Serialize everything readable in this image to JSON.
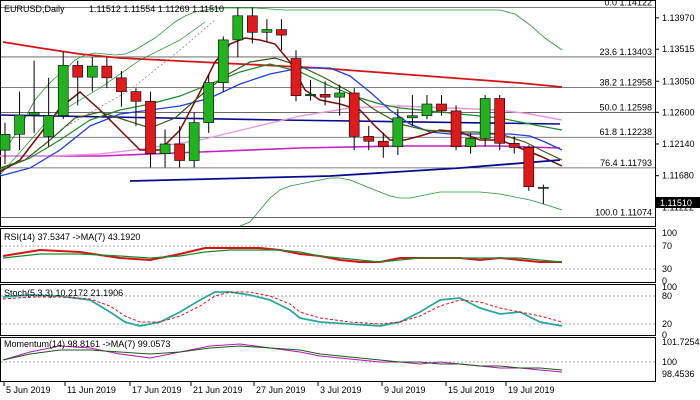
{
  "header": {
    "symbol": "EURUSD,Daily",
    "ohlc": "1.11512 1.11554 1.11269 1.11510"
  },
  "price_axis": [
    "1.13970",
    "1.13515",
    "1.13050",
    "1.12600",
    "1.12140",
    "1.11680",
    "1.11222"
  ],
  "price_badge": "1.11510",
  "fib_levels": [
    {
      "label": "0.0 1.14122",
      "price": 1.14122
    },
    {
      "label": "23.6 1.13403",
      "price": 1.13403
    },
    {
      "label": "38.2 1.12958",
      "price": 1.12958
    },
    {
      "label": "50.0 1.12598",
      "price": 1.12598
    },
    {
      "label": "61.8 1.12238",
      "price": 1.12238
    },
    {
      "label": "76.4 1.11793",
      "price": 1.11793
    },
    {
      "label": "100.0 1.11074",
      "price": 1.11074
    }
  ],
  "x_labels": [
    "5 Jun 2019",
    "11 Jun 2019",
    "17 Jun 2019",
    "21 Jun 2019",
    "27 Jun 2019",
    "3 Jul 2019",
    "9 Jul 2019",
    "15 Jul 2019",
    "19 Jul 2019"
  ],
  "rsi": {
    "header": "RSI(14) 37.5347  ->MA(7) 43.1920",
    "axis": [
      "100",
      "70",
      "30",
      "0"
    ]
  },
  "stoch": {
    "header": "Stoch(5,3,3) 10.2172 21.1906",
    "axis": [
      "100",
      "80",
      "20",
      "0"
    ]
  },
  "momentum": {
    "header": "Momentum(14) 98.8161  ->MA(7) 99.0573",
    "axis": [
      "101.7254",
      "100",
      "98.4536"
    ]
  },
  "colors": {
    "bull": "#22b21f",
    "bear": "#e01a1a",
    "candle_border": "#000000",
    "fib": "#555555",
    "trend": "#0a0a8f"
  },
  "chart_data": {
    "type": "candlestick",
    "title": "EURUSD,Daily",
    "ylim": [
      1.1095,
      1.142
    ],
    "candles": [
      {
        "date": "3 Jun 2019",
        "o": 1.1205,
        "h": 1.1245,
        "l": 1.1185,
        "c": 1.1228
      },
      {
        "date": "4 Jun 2019",
        "o": 1.1228,
        "h": 1.129,
        "l": 1.1205,
        "c": 1.1256
      },
      {
        "date": "5 Jun 2019",
        "o": 1.1256,
        "h": 1.1335,
        "l": 1.123,
        "c": 1.126
      },
      {
        "date": "6 Jun 2019",
        "o": 1.1225,
        "h": 1.131,
        "l": 1.121,
        "c": 1.1255
      },
      {
        "date": "7 Jun 2019",
        "o": 1.1255,
        "h": 1.1348,
        "l": 1.125,
        "c": 1.1328
      },
      {
        "date": "10 Jun 2019",
        "o": 1.1328,
        "h": 1.1335,
        "l": 1.127,
        "c": 1.1311
      },
      {
        "date": "11 Jun 2019",
        "o": 1.1311,
        "h": 1.134,
        "l": 1.129,
        "c": 1.1327
      },
      {
        "date": "12 Jun 2019",
        "o": 1.1327,
        "h": 1.134,
        "l": 1.1295,
        "c": 1.131
      },
      {
        "date": "13 Jun 2019",
        "o": 1.131,
        "h": 1.132,
        "l": 1.1268,
        "c": 1.129
      },
      {
        "date": "14 Jun 2019",
        "o": 1.129,
        "h": 1.1295,
        "l": 1.124,
        "c": 1.1276
      },
      {
        "date": "17 Jun 2019",
        "o": 1.1276,
        "h": 1.129,
        "l": 1.118,
        "c": 1.12
      },
      {
        "date": "18 Jun 2019",
        "o": 1.12,
        "h": 1.1235,
        "l": 1.118,
        "c": 1.1214
      },
      {
        "date": "19 Jun 2019",
        "o": 1.1214,
        "h": 1.124,
        "l": 1.118,
        "c": 1.119
      },
      {
        "date": "20 Jun 2019",
        "o": 1.119,
        "h": 1.126,
        "l": 1.118,
        "c": 1.1245
      },
      {
        "date": "21 Jun 2019",
        "o": 1.1245,
        "h": 1.1315,
        "l": 1.123,
        "c": 1.1303
      },
      {
        "date": "24 Jun 2019",
        "o": 1.1303,
        "h": 1.137,
        "l": 1.129,
        "c": 1.1365
      },
      {
        "date": "25 Jun 2019",
        "o": 1.1365,
        "h": 1.1412,
        "l": 1.134,
        "c": 1.14
      },
      {
        "date": "26 Jun 2019",
        "o": 1.14,
        "h": 1.1412,
        "l": 1.136,
        "c": 1.1376
      },
      {
        "date": "27 Jun 2019",
        "o": 1.1376,
        "h": 1.1395,
        "l": 1.1363,
        "c": 1.138
      },
      {
        "date": "28 Jun 2019",
        "o": 1.138,
        "h": 1.1395,
        "l": 1.135,
        "c": 1.1372
      },
      {
        "date": "1 Jul 2019",
        "o": 1.1338,
        "h": 1.135,
        "l": 1.1276,
        "c": 1.1284
      },
      {
        "date": "2 Jul 2019",
        "o": 1.1284,
        "h": 1.1307,
        "l": 1.1277,
        "c": 1.1286
      },
      {
        "date": "3 Jul 2019",
        "o": 1.1286,
        "h": 1.1305,
        "l": 1.127,
        "c": 1.1282
      },
      {
        "date": "4 Jul 2019",
        "o": 1.1282,
        "h": 1.13,
        "l": 1.1255,
        "c": 1.1288
      },
      {
        "date": "5 Jul 2019",
        "o": 1.1288,
        "h": 1.1295,
        "l": 1.1205,
        "c": 1.1225
      },
      {
        "date": "8 Jul 2019",
        "o": 1.1225,
        "h": 1.124,
        "l": 1.1205,
        "c": 1.1218
      },
      {
        "date": "9 Jul 2019",
        "o": 1.1218,
        "h": 1.123,
        "l": 1.1194,
        "c": 1.121
      },
      {
        "date": "10 Jul 2019",
        "o": 1.121,
        "h": 1.1265,
        "l": 1.1198,
        "c": 1.1252
      },
      {
        "date": "11 Jul 2019",
        "o": 1.1252,
        "h": 1.1285,
        "l": 1.124,
        "c": 1.1255
      },
      {
        "date": "12 Jul 2019",
        "o": 1.1255,
        "h": 1.1285,
        "l": 1.125,
        "c": 1.1272
      },
      {
        "date": "15 Jul 2019",
        "o": 1.1272,
        "h": 1.1285,
        "l": 1.1255,
        "c": 1.1262
      },
      {
        "date": "16 Jul 2019",
        "o": 1.1262,
        "h": 1.127,
        "l": 1.1205,
        "c": 1.121
      },
      {
        "date": "17 Jul 2019",
        "o": 1.121,
        "h": 1.123,
        "l": 1.12,
        "c": 1.1222
      },
      {
        "date": "18 Jul 2019",
        "o": 1.1222,
        "h": 1.1285,
        "l": 1.121,
        "c": 1.128
      },
      {
        "date": "19 Jul 2019",
        "o": 1.128,
        "h": 1.1285,
        "l": 1.1205,
        "c": 1.1215
      },
      {
        "date": "22 Jul 2019",
        "o": 1.1215,
        "h": 1.1225,
        "l": 1.12,
        "c": 1.1209
      },
      {
        "date": "23 Jul 2019",
        "o": 1.1209,
        "h": 1.1212,
        "l": 1.1146,
        "c": 1.1152
      },
      {
        "date": "24 Jul 2019",
        "o": 1.1151,
        "h": 1.1155,
        "l": 1.1127,
        "c": 1.1151
      }
    ]
  }
}
